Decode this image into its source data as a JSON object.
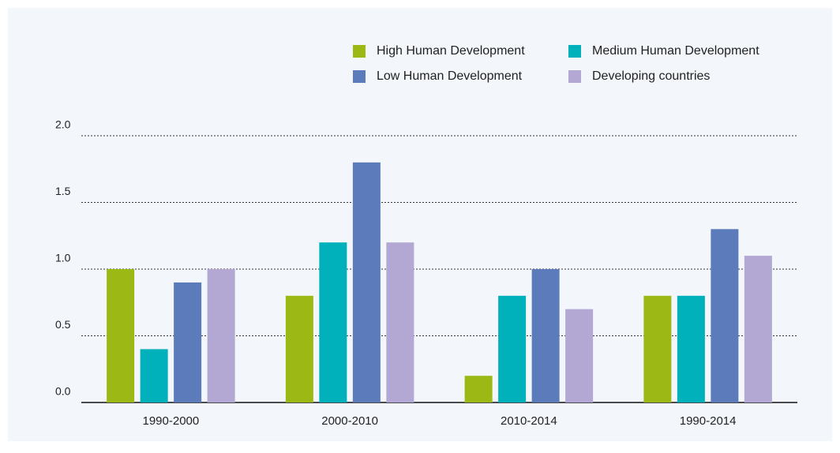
{
  "chart_data": {
    "type": "bar",
    "categories": [
      "1990-2000",
      "2000-2010",
      "2010-2014",
      "1990-2014"
    ],
    "series": [
      {
        "name": "High Human Development",
        "color": "#9bb814",
        "values": [
          1.0,
          0.8,
          0.2,
          0.8
        ]
      },
      {
        "name": "Medium Human Development",
        "color": "#00b0bb",
        "values": [
          0.4,
          1.2,
          0.8,
          0.8
        ]
      },
      {
        "name": "Low Human Development",
        "color": "#5b7bbb",
        "values": [
          0.9,
          1.8,
          1.0,
          1.3
        ]
      },
      {
        "name": "Developing countries",
        "color": "#b3a8d3",
        "values": [
          1.0,
          1.2,
          0.7,
          1.1
        ]
      }
    ],
    "ylim": [
      0,
      2
    ],
    "yticks": [
      {
        "value": 0,
        "label": "0.0"
      },
      0.5,
      {
        "value": 1,
        "label": "1.0"
      },
      1.5,
      {
        "value": 2,
        "label": "2.0"
      }
    ],
    "grid": true,
    "legend": "top-right"
  }
}
